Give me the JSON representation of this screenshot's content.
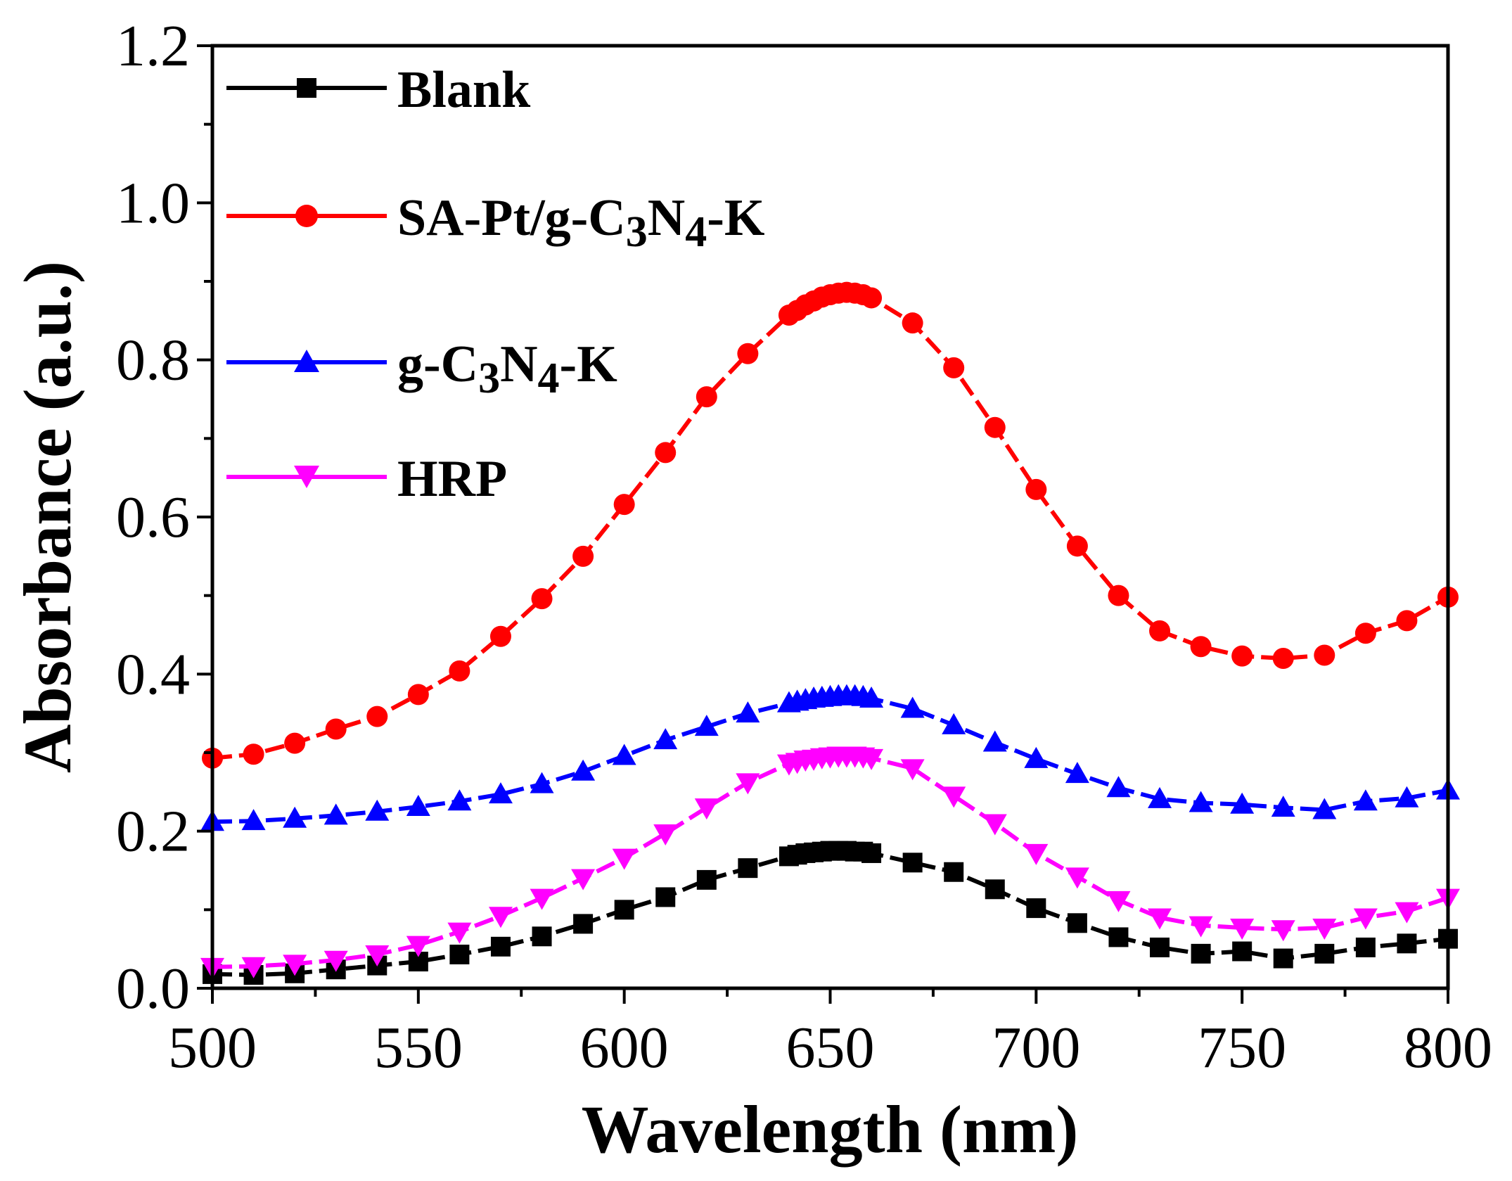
{
  "chart_data": {
    "type": "line",
    "xlabel": "Wavelength (nm)",
    "ylabel": "Absorbance (a.u.)",
    "xlim": [
      500,
      800
    ],
    "ylim": [
      0.0,
      1.2
    ],
    "xticks": [
      500,
      550,
      600,
      650,
      700,
      750,
      800
    ],
    "xtick_labels": [
      "500",
      "550",
      "600",
      "650",
      "700",
      "750",
      "800"
    ],
    "yticks": [
      0.0,
      0.2,
      0.4,
      0.6,
      0.8,
      1.0,
      1.2
    ],
    "ytick_labels": [
      "0.0",
      "0.2",
      "0.4",
      "0.6",
      "0.8",
      "1.0",
      "1.2"
    ],
    "legend_position": "top-left",
    "series": [
      {
        "name": "Blank",
        "label_main": "Blank",
        "color": "#000000",
        "marker": "square",
        "x": [
          500,
          510,
          520,
          530,
          540,
          550,
          560,
          570,
          580,
          590,
          600,
          610,
          620,
          630,
          640,
          642,
          644,
          646,
          648,
          650,
          652,
          654,
          656,
          658,
          660,
          670,
          680,
          690,
          700,
          710,
          720,
          730,
          740,
          750,
          760,
          770,
          780,
          790,
          800
        ],
        "y": [
          0.018,
          0.017,
          0.019,
          0.024,
          0.029,
          0.034,
          0.043,
          0.053,
          0.066,
          0.082,
          0.1,
          0.116,
          0.138,
          0.153,
          0.168,
          0.17,
          0.172,
          0.173,
          0.174,
          0.175,
          0.175,
          0.175,
          0.174,
          0.174,
          0.172,
          0.16,
          0.148,
          0.126,
          0.102,
          0.083,
          0.065,
          0.052,
          0.044,
          0.047,
          0.038,
          0.044,
          0.052,
          0.057,
          0.063
        ]
      },
      {
        "name": "SA-Pt/g-C3N4-K",
        "label_main": "SA-Pt/g-C",
        "label_sub1": "3",
        "label_mid": "N",
        "label_sub2": "4",
        "label_tail": "-K",
        "color": "#ff0000",
        "marker": "circle",
        "x": [
          500,
          510,
          520,
          530,
          540,
          550,
          560,
          570,
          580,
          590,
          600,
          610,
          620,
          630,
          640,
          642,
          644,
          646,
          648,
          650,
          652,
          654,
          656,
          658,
          660,
          670,
          680,
          690,
          700,
          710,
          720,
          730,
          740,
          750,
          760,
          770,
          780,
          790,
          800
        ],
        "y": [
          0.293,
          0.298,
          0.312,
          0.33,
          0.346,
          0.374,
          0.404,
          0.448,
          0.496,
          0.55,
          0.616,
          0.682,
          0.753,
          0.808,
          0.857,
          0.863,
          0.87,
          0.875,
          0.88,
          0.883,
          0.885,
          0.886,
          0.885,
          0.883,
          0.879,
          0.847,
          0.79,
          0.714,
          0.635,
          0.563,
          0.5,
          0.455,
          0.435,
          0.423,
          0.42,
          0.424,
          0.452,
          0.468,
          0.498
        ]
      },
      {
        "name": "g-C3N4-K",
        "label_main": "g-C",
        "label_sub1": "3",
        "label_mid": "N",
        "label_sub2": "4",
        "label_tail": "-K",
        "color": "#0000ff",
        "marker": "triangle-up",
        "x": [
          500,
          510,
          520,
          530,
          540,
          550,
          560,
          570,
          580,
          590,
          600,
          610,
          620,
          630,
          640,
          642,
          644,
          646,
          648,
          650,
          652,
          654,
          656,
          658,
          660,
          670,
          680,
          690,
          700,
          710,
          720,
          730,
          740,
          750,
          760,
          770,
          780,
          790,
          800
        ],
        "y": [
          0.212,
          0.213,
          0.216,
          0.22,
          0.225,
          0.231,
          0.238,
          0.247,
          0.26,
          0.276,
          0.296,
          0.316,
          0.333,
          0.35,
          0.363,
          0.365,
          0.367,
          0.369,
          0.37,
          0.371,
          0.372,
          0.372,
          0.372,
          0.371,
          0.369,
          0.356,
          0.335,
          0.313,
          0.292,
          0.273,
          0.255,
          0.241,
          0.236,
          0.234,
          0.23,
          0.227,
          0.238,
          0.242,
          0.252
        ]
      },
      {
        "name": "HRP",
        "label_main": "HRP",
        "color": "#ff00ff",
        "marker": "triangle-down",
        "x": [
          500,
          510,
          520,
          530,
          540,
          550,
          560,
          570,
          580,
          590,
          600,
          610,
          620,
          630,
          640,
          642,
          644,
          646,
          648,
          650,
          652,
          654,
          656,
          658,
          660,
          670,
          680,
          690,
          700,
          710,
          720,
          730,
          740,
          750,
          760,
          770,
          780,
          790,
          800
        ],
        "y": [
          0.027,
          0.028,
          0.031,
          0.036,
          0.043,
          0.055,
          0.072,
          0.092,
          0.115,
          0.14,
          0.166,
          0.197,
          0.23,
          0.262,
          0.286,
          0.288,
          0.291,
          0.292,
          0.294,
          0.295,
          0.296,
          0.296,
          0.296,
          0.295,
          0.293,
          0.28,
          0.245,
          0.21,
          0.172,
          0.142,
          0.112,
          0.09,
          0.08,
          0.077,
          0.075,
          0.077,
          0.09,
          0.098,
          0.115
        ]
      }
    ]
  }
}
